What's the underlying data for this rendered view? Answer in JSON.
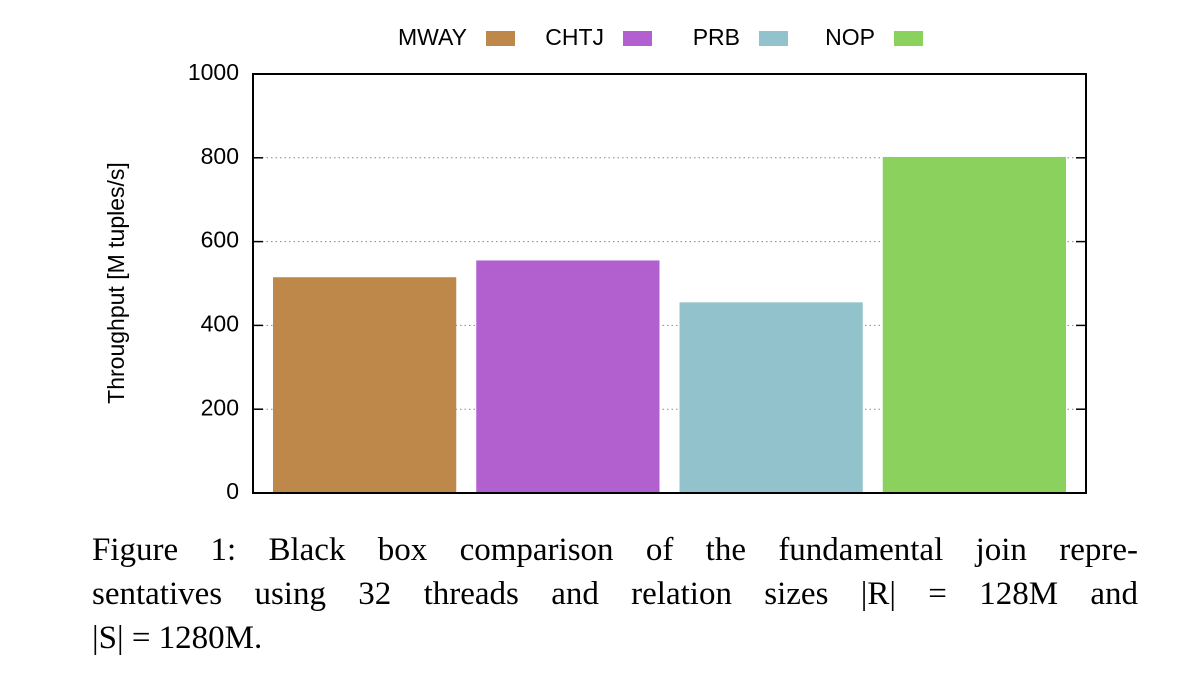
{
  "chart_data": {
    "type": "bar",
    "y_label": "Throughput [M tuples/s]",
    "categories": [
      null
    ],
    "series": [
      {
        "name": "MWAY",
        "color": "#bd884a",
        "values": [
          515
        ]
      },
      {
        "name": "CHTJ",
        "color": "#b260d0",
        "values": [
          555
        ]
      },
      {
        "name": "PRB",
        "color": "#92c3cc",
        "values": [
          455
        ]
      },
      {
        "name": "NOP",
        "color": "#8bd15e",
        "values": [
          802
        ]
      }
    ],
    "ylim": [
      0,
      1000
    ],
    "yticks": [
      0,
      200,
      400,
      600,
      800,
      1000
    ],
    "grid": true,
    "caption": [
      "Figure 1:  Black box comparison of the fundamental join repre-",
      "sentatives using 32 threads and relation sizes |R| = 128M and",
      "|S| = 1280M."
    ]
  }
}
